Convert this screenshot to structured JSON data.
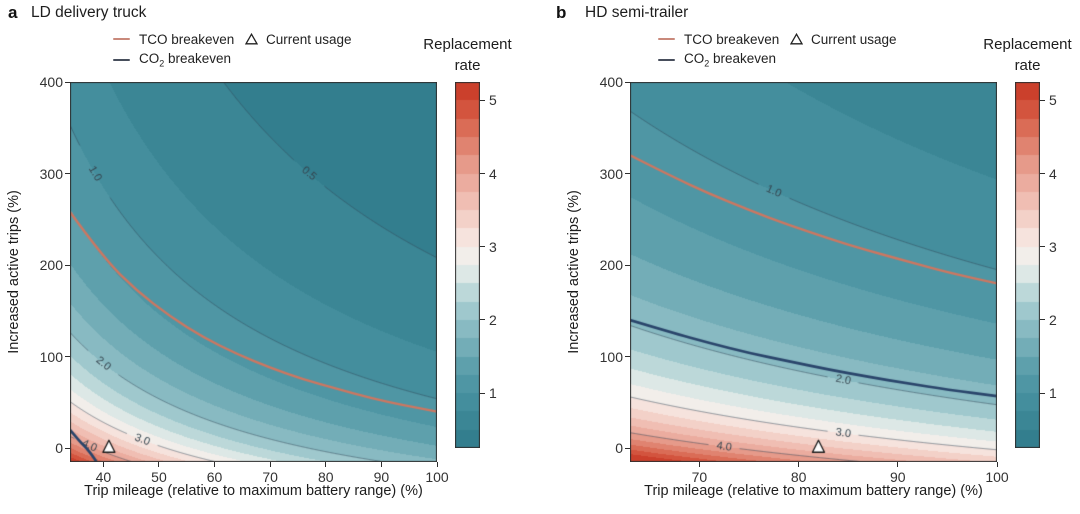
{
  "legend": {
    "tco_label": "TCO breakeven",
    "co2_label_prefix": "CO",
    "co2_label_sub": "2",
    "co2_label_suffix": " breakeven",
    "usage_label": "Current usage"
  },
  "colorbar": {
    "title_line1": "Replacement",
    "title_line2": "rate",
    "ticks": [
      5,
      4,
      3,
      2,
      1
    ],
    "range": [
      0.25,
      5.25
    ],
    "band_step": 0.25
  },
  "axes": {
    "xlabel": "Trip mileage (relative to maximum battery range) (%)",
    "ylabel": "Increased active trips (%)"
  },
  "colors": {
    "background": "#ffffff",
    "axis": "#2e2e2e",
    "tick_text": "#333333",
    "contour_line": "#3c5163",
    "contour_label": "#35454f",
    "tco_line": "#cd7761",
    "co2_line": "#2a456b",
    "tco_legend_swatch": "#c9897b",
    "co2_legend_swatch": "#474e5c",
    "marker_fill": "#ffffff",
    "marker_stroke": "#1a1a1a",
    "colormap_stops": [
      [
        0.25,
        "#2f7a8a"
      ],
      [
        0.75,
        "#3f8a99"
      ],
      [
        1.25,
        "#549aa7"
      ],
      [
        1.75,
        "#7db3bc"
      ],
      [
        2.25,
        "#aacfd2"
      ],
      [
        2.55,
        "#d5e4e2"
      ],
      [
        2.8,
        "#f0f1ee"
      ],
      [
        3.1,
        "#f6e5df"
      ],
      [
        3.6,
        "#f0c0b5"
      ],
      [
        4.1,
        "#e79c8d"
      ],
      [
        4.6,
        "#db6e58"
      ],
      [
        5.0,
        "#cf4832"
      ],
      [
        5.25,
        "#c63826"
      ]
    ]
  },
  "chart_data": [
    {
      "id": "a",
      "panel_label": "a",
      "title": "LD delivery truck",
      "type": "heatmap",
      "subtype": "filled-contour",
      "xlim": [
        34,
        100
      ],
      "ylim": [
        -15,
        400
      ],
      "xticks": [
        40,
        50,
        60,
        70,
        80,
        90,
        100
      ],
      "yticks": [
        0,
        100,
        200,
        300,
        400
      ],
      "field": {
        "formula": "replacement_rate = K / (x * (100 + y))",
        "K": 15400
      },
      "contours": [
        {
          "level": 0.5,
          "text": "0.5",
          "label_x": 77
        },
        {
          "level": 1.0,
          "text": "1.0",
          "label_x": 38.5
        },
        {
          "level": 2.0,
          "text": "2.0",
          "label_x": 40
        },
        {
          "level": 3.0,
          "text": "3.0",
          "label_x": 47
        },
        {
          "level": 4.0,
          "text": "4.0",
          "label_x": 37.5
        }
      ],
      "tco_breakeven": [
        [
          34,
          258
        ],
        [
          40,
          208
        ],
        [
          46,
          172
        ],
        [
          52,
          144
        ],
        [
          58,
          121
        ],
        [
          64,
          103
        ],
        [
          70,
          88
        ],
        [
          76,
          75
        ],
        [
          82,
          65
        ],
        [
          88,
          55
        ],
        [
          94,
          47
        ],
        [
          100,
          40
        ]
      ],
      "co2_breakeven": [
        [
          34,
          20
        ],
        [
          35,
          13
        ],
        [
          36,
          6
        ],
        [
          37,
          0
        ],
        [
          38,
          -8
        ],
        [
          38.8,
          -15
        ]
      ],
      "current_usage": [
        41,
        0
      ]
    },
    {
      "id": "b",
      "panel_label": "b",
      "title": "HD semi-trailer",
      "type": "heatmap",
      "subtype": "filled-contour",
      "xlim": [
        63,
        100
      ],
      "ylim": [
        -15,
        400
      ],
      "xticks": [
        70,
        80,
        90,
        100
      ],
      "yticks": [
        0,
        100,
        200,
        300,
        400
      ],
      "field": {
        "formula": "replacement_rate = K / (x * (100 + y))",
        "K": 29500
      },
      "contours": [
        {
          "level": 1.0,
          "text": "1.0",
          "label_x": 77.5
        },
        {
          "level": 2.0,
          "text": "2.0",
          "label_x": 84.5
        },
        {
          "level": 3.0,
          "text": "3.0",
          "label_x": 84.5
        },
        {
          "level": 4.0,
          "text": "4.0",
          "label_x": 72.5
        }
      ],
      "tco_breakeven": [
        [
          63,
          320
        ],
        [
          67,
          298
        ],
        [
          71,
          278
        ],
        [
          75,
          260
        ],
        [
          79,
          244
        ],
        [
          83,
          229
        ],
        [
          87,
          216
        ],
        [
          91,
          204
        ],
        [
          95,
          192
        ],
        [
          100,
          180
        ]
      ],
      "co2_breakeven": [
        [
          63,
          140
        ],
        [
          67,
          127
        ],
        [
          71,
          115
        ],
        [
          75,
          104
        ],
        [
          79,
          95
        ],
        [
          83,
          86
        ],
        [
          87,
          78
        ],
        [
          91,
          71
        ],
        [
          95,
          64
        ],
        [
          100,
          57
        ]
      ],
      "current_usage": [
        82,
        0
      ]
    }
  ]
}
